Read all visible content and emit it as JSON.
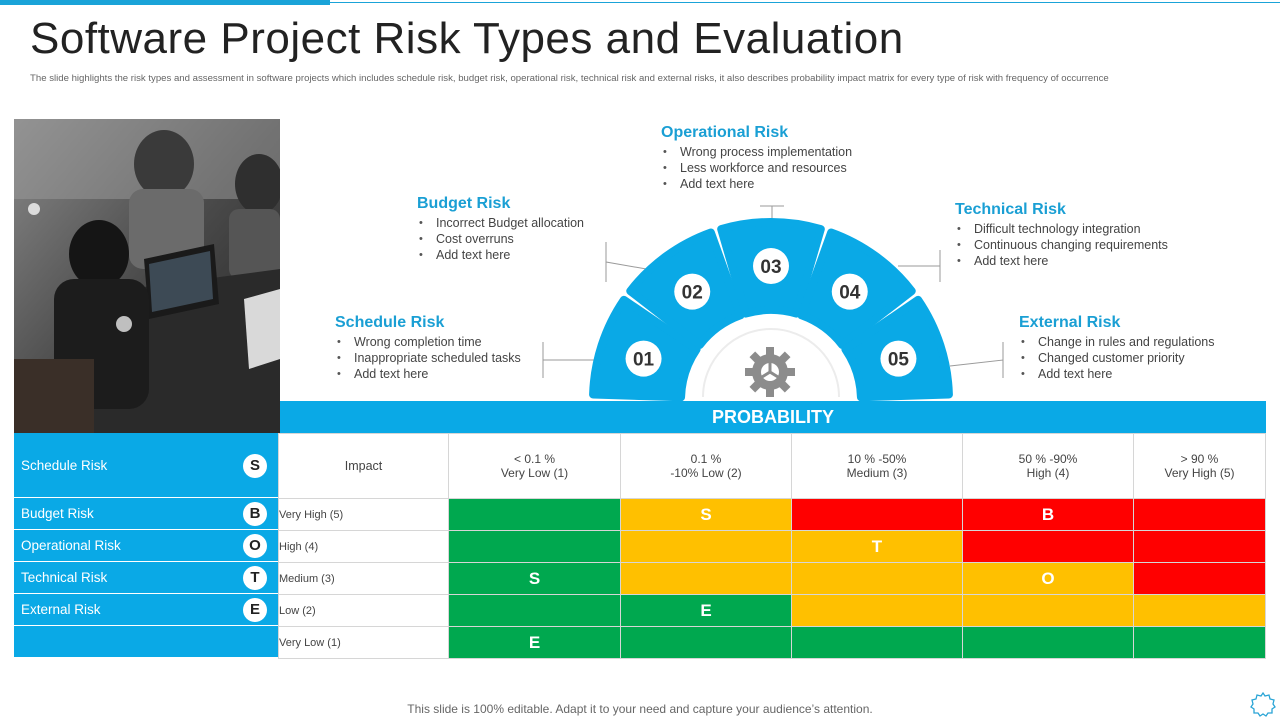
{
  "title": "Software Project Risk Types and Evaluation",
  "subtitle": "The slide highlights the risk types and assessment in software projects which includes schedule risk, budget risk, operational risk, technical risk and external risks, it also describes probability impact matrix for every type of risk with frequency of occurrence",
  "colors": {
    "accent": "#0aa9e6",
    "heading": "#1a9fd4",
    "green": "#00a84f",
    "amber": "#ffc000",
    "red": "#ff0000"
  },
  "arc_segments": [
    "01",
    "02",
    "03",
    "04",
    "05"
  ],
  "risks": [
    {
      "title": "Schedule Risk",
      "bullets": [
        "Wrong completion time",
        "Inappropriate  scheduled tasks",
        "Add text here"
      ]
    },
    {
      "title": "Budget Risk",
      "bullets": [
        "Incorrect Budget allocation",
        "Cost overruns",
        "Add text here"
      ]
    },
    {
      "title": "Operational Risk",
      "bullets": [
        "Wrong process implementation",
        "Less workforce and resources",
        "Add text here"
      ]
    },
    {
      "title": "Technical Risk",
      "bullets": [
        "Difficult technology integration",
        "Continuous  changing requirements",
        "Add text here"
      ]
    },
    {
      "title": "External Risk",
      "bullets": [
        "Change in rules and regulations",
        "Changed customer priority",
        "Add text here"
      ]
    }
  ],
  "probability_label": "PROBABILITY",
  "legend": [
    {
      "label": "Schedule  Risk",
      "letter": "S"
    },
    {
      "label": "Budget Risk",
      "letter": "B"
    },
    {
      "label": "Operational Risk",
      "letter": "O"
    },
    {
      "label": "Technical Risk",
      "letter": "T"
    },
    {
      "label": "External Risk",
      "letter": "E"
    }
  ],
  "matrix": {
    "impact_label": "Impact",
    "columns": [
      {
        "line1": "< 0.1 %",
        "line2": "Very Low (1)"
      },
      {
        "line1": "0.1 %",
        "line2": "-10% Low (2)"
      },
      {
        "line1": "10 % -50%",
        "line2": "Medium (3)"
      },
      {
        "line1": "50 % -90%",
        "line2": "High (4)"
      },
      {
        "line1": "> 90 %",
        "line2": "Very High (5)"
      }
    ],
    "rows": [
      {
        "label": "Very High (5)",
        "cells": [
          {
            "c": "green",
            "t": ""
          },
          {
            "c": "amber",
            "t": "S"
          },
          {
            "c": "red",
            "t": ""
          },
          {
            "c": "red",
            "t": "B"
          },
          {
            "c": "red",
            "t": ""
          }
        ]
      },
      {
        "label": "High  (4)",
        "cells": [
          {
            "c": "green",
            "t": ""
          },
          {
            "c": "amber",
            "t": ""
          },
          {
            "c": "amber",
            "t": "T"
          },
          {
            "c": "red",
            "t": ""
          },
          {
            "c": "red",
            "t": ""
          }
        ]
      },
      {
        "label": "Medium  (3)",
        "cells": [
          {
            "c": "green",
            "t": "S"
          },
          {
            "c": "amber",
            "t": ""
          },
          {
            "c": "amber",
            "t": ""
          },
          {
            "c": "amber",
            "t": "O"
          },
          {
            "c": "red",
            "t": ""
          }
        ]
      },
      {
        "label": " Low  (2)",
        "cells": [
          {
            "c": "green",
            "t": ""
          },
          {
            "c": "green",
            "t": "E"
          },
          {
            "c": "amber",
            "t": ""
          },
          {
            "c": "amber",
            "t": ""
          },
          {
            "c": "amber",
            "t": ""
          }
        ]
      },
      {
        "label": "Very Low  (1)",
        "cells": [
          {
            "c": "green",
            "t": "E"
          },
          {
            "c": "green",
            "t": ""
          },
          {
            "c": "green",
            "t": ""
          },
          {
            "c": "green",
            "t": ""
          },
          {
            "c": "green",
            "t": ""
          }
        ]
      }
    ]
  },
  "footer": "This slide is 100% editable. Adapt it to your need and capture your audience’s attention."
}
